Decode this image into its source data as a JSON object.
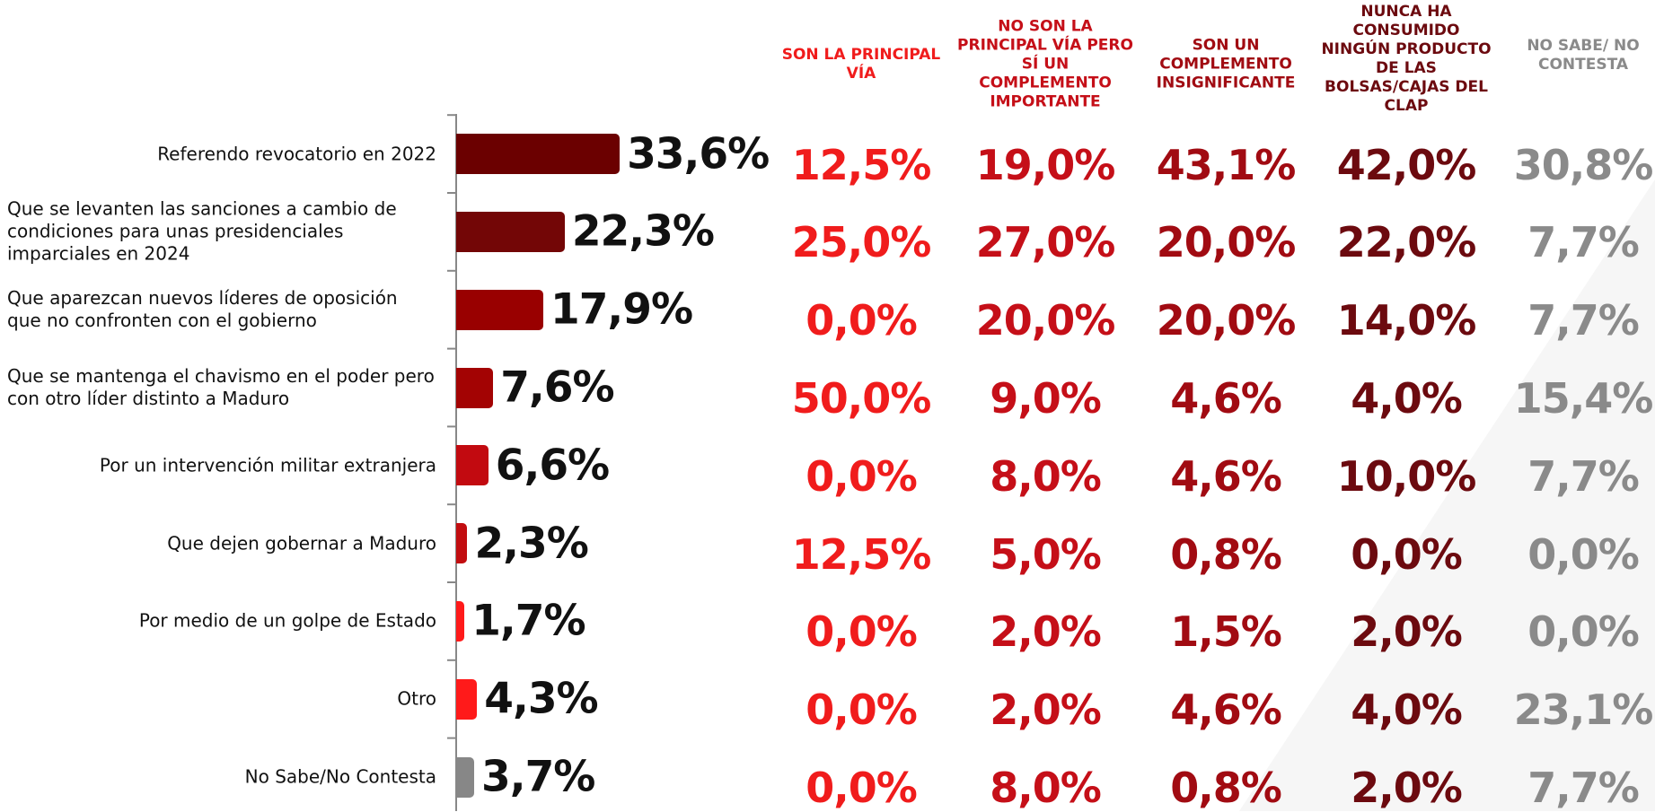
{
  "chart_data": {
    "type": "hbar",
    "categories": [
      "Referendo revocatorio en 2022",
      "Que se levanten las sanciones a cambio de condiciones para unas presidenciales imparciales en 2024",
      "Que aparezcan nuevos líderes de oposición que no confronten con el gobierno",
      "Que se mantenga el chavismo en el poder pero con otro líder distinto a Maduro",
      "Por un intervención militar extranjera",
      "Que dejen gobernar a Maduro",
      "Por medio de un golpe de Estado",
      "Otro",
      "No Sabe/No Contesta"
    ],
    "values": [
      33.6,
      22.3,
      17.9,
      7.6,
      6.6,
      2.3,
      1.7,
      4.3,
      3.7
    ],
    "value_labels": [
      "33,6%",
      "22,3%",
      "17,9%",
      "7,6%",
      "6,6%",
      "2,3%",
      "1,7%",
      "4,3%",
      "3,7%"
    ],
    "colors": [
      "#6b0000",
      "#730606",
      "#990000",
      "#a30303",
      "#c20a10",
      "#c20d10",
      "#ff1a1a",
      "#ff1a1a",
      "#878787"
    ]
  },
  "table": {
    "columns": [
      "SON LA PRINCIPAL VÍA",
      "NO SON LA PRINCIPAL VÍA PERO SÍ UN COMPLEMENTO IMPORTANTE",
      "SON UN COMPLEMENTO INSIGNIFICANTE",
      "NUNCA HA CONSUMIDO NINGÚN PRODUCTO DE LAS BOLSAS/CAJAS DEL CLAP",
      "NO SABE/ NO CONTESTA"
    ],
    "column_colors": [
      "#f01c1c",
      "#c50f18",
      "#a10b12",
      "#6c0a0f",
      "#8a8a8a"
    ],
    "rows": [
      [
        "12,5%",
        "19,0%",
        "43,1%",
        "42,0%",
        "30,8%"
      ],
      [
        "25,0%",
        "27,0%",
        "20,0%",
        "22,0%",
        "7,7%"
      ],
      [
        "0,0%",
        "20,0%",
        "20,0%",
        "14,0%",
        "7,7%"
      ],
      [
        "50,0%",
        "9,0%",
        "4,6%",
        "4,0%",
        "15,4%"
      ],
      [
        "0,0%",
        "8,0%",
        "4,6%",
        "10,0%",
        "7,7%"
      ],
      [
        "12,5%",
        "5,0%",
        "0,8%",
        "0,0%",
        "0,0%"
      ],
      [
        "0,0%",
        "2,0%",
        "1,5%",
        "2,0%",
        "0,0%"
      ],
      [
        "0,0%",
        "2,0%",
        "4,6%",
        "4,0%",
        "23,1%"
      ],
      [
        "0,0%",
        "8,0%",
        "0,8%",
        "2,0%",
        "7,7%"
      ]
    ]
  }
}
